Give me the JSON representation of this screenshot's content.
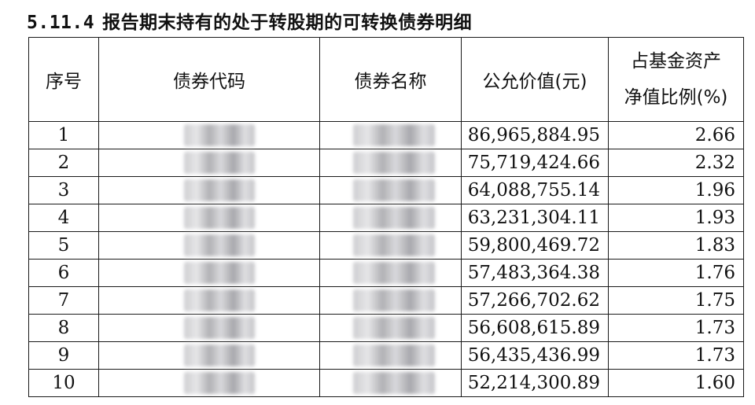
{
  "section": {
    "number": "5.11.4",
    "title": "报告期末持有的处于转股期的可转换债券明细"
  },
  "table": {
    "headers": {
      "index": "序号",
      "code": "债券代码",
      "name": "债券名称",
      "fair_value": "公允价值(元)",
      "ratio_line1": "占基金资产",
      "ratio_line2": "净值比例(%)"
    },
    "rows": [
      {
        "index": "1",
        "fair_value": "86,965,884.95",
        "ratio": "2.66"
      },
      {
        "index": "2",
        "fair_value": "75,719,424.66",
        "ratio": "2.32"
      },
      {
        "index": "3",
        "fair_value": "64,088,755.14",
        "ratio": "1.96"
      },
      {
        "index": "4",
        "fair_value": "63,231,304.11",
        "ratio": "1.93"
      },
      {
        "index": "5",
        "fair_value": "59,800,469.72",
        "ratio": "1.83"
      },
      {
        "index": "6",
        "fair_value": "57,483,364.38",
        "ratio": "1.76"
      },
      {
        "index": "7",
        "fair_value": "57,266,702.62",
        "ratio": "1.75"
      },
      {
        "index": "8",
        "fair_value": "56,608,615.89",
        "ratio": "1.73"
      },
      {
        "index": "9",
        "fair_value": "56,435,436.99",
        "ratio": "1.73"
      },
      {
        "index": "10",
        "fair_value": "52,214,300.89",
        "ratio": "1.60"
      }
    ]
  }
}
